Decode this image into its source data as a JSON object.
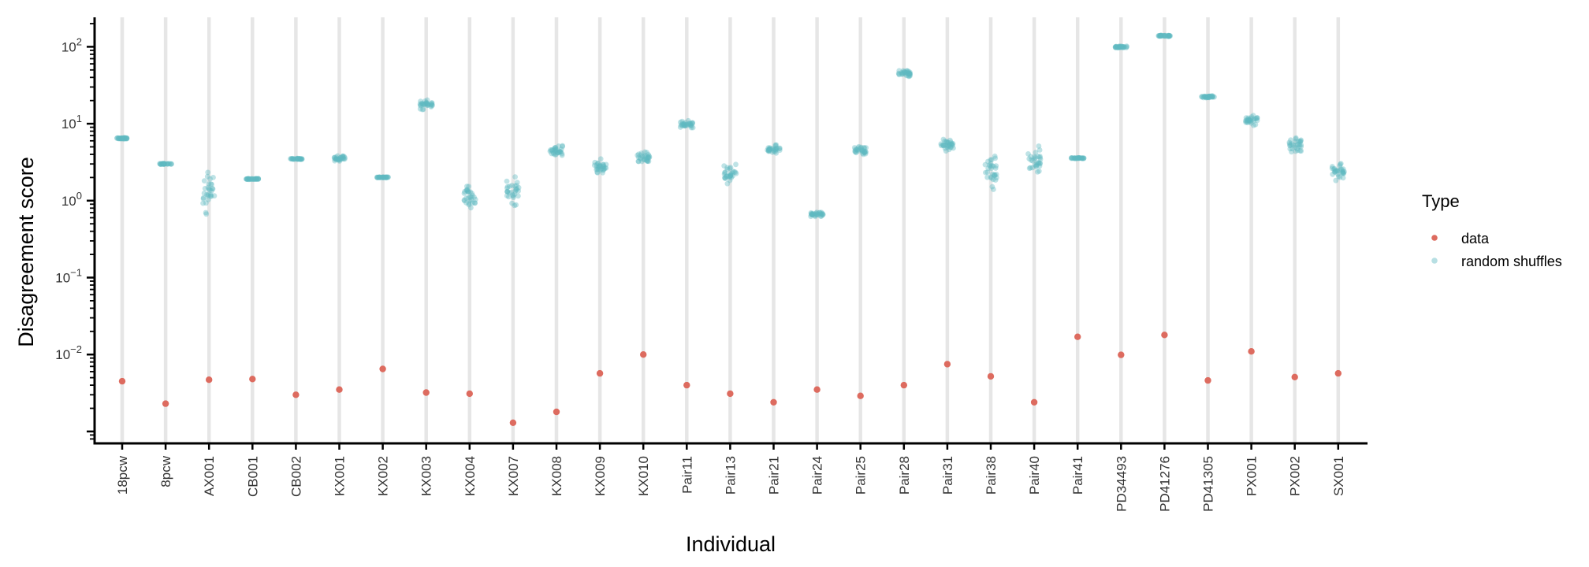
{
  "chart_data": {
    "type": "scatter",
    "title": "",
    "xlabel": "Individual",
    "ylabel": "Disagreement score",
    "yscale": "log10",
    "ylim": [
      0.00055,
      250
    ],
    "grid": "vertical-major",
    "legend": {
      "title": "Type",
      "position": "right",
      "entries": [
        {
          "name": "data",
          "color": "#dd6b5f"
        },
        {
          "name": "random shuffles",
          "color": "#5fb8c1"
        }
      ]
    },
    "y_ticks": [
      {
        "value": 0.01,
        "base": "10",
        "exp": "−2"
      },
      {
        "value": 0.1,
        "base": "10",
        "exp": "−1"
      },
      {
        "value": 1,
        "base": "10",
        "exp": "0"
      },
      {
        "value": 10,
        "base": "10",
        "exp": "1"
      },
      {
        "value": 100,
        "base": "10",
        "exp": "2"
      }
    ],
    "categories": [
      "18pcw",
      "8pcw",
      "AX001",
      "CB001",
      "CB002",
      "KX001",
      "KX002",
      "KX003",
      "KX004",
      "KX007",
      "KX008",
      "KX009",
      "KX010",
      "Pair11",
      "Pair13",
      "Pair21",
      "Pair24",
      "Pair25",
      "Pair28",
      "Pair31",
      "Pair38",
      "Pair40",
      "Pair41",
      "PD34493",
      "PD41276",
      "PD41305",
      "PX001",
      "PX002",
      "SX001"
    ],
    "series": [
      {
        "name": "data",
        "values": [
          0.0045,
          0.0023,
          0.0047,
          0.0048,
          0.003,
          0.0035,
          0.0065,
          0.0032,
          0.0031,
          0.0013,
          0.0018,
          0.0057,
          0.01,
          0.004,
          0.0031,
          0.0024,
          0.0035,
          0.0029,
          0.004,
          0.0075,
          0.0052,
          0.0024,
          0.017,
          0.0099,
          0.018,
          0.0046,
          0.011,
          0.0051,
          0.0057
        ]
      },
      {
        "name": "random shuffles",
        "ranges": [
          [
            6.3,
            6.6
          ],
          [
            2.95,
            3.05
          ],
          [
            0.55,
            2.6
          ],
          [
            1.88,
            1.95
          ],
          [
            3.4,
            3.55
          ],
          [
            3.2,
            4.0
          ],
          [
            1.98,
            2.05
          ],
          [
            15,
            21
          ],
          [
            0.78,
            1.6
          ],
          [
            0.85,
            2.2
          ],
          [
            3.6,
            5.4
          ],
          [
            2.0,
            3.5
          ],
          [
            3.1,
            4.3
          ],
          [
            8.8,
            11
          ],
          [
            1.55,
            3.1
          ],
          [
            3.9,
            5.5
          ],
          [
            0.62,
            0.72
          ],
          [
            3.9,
            5.2
          ],
          [
            40,
            52
          ],
          [
            4.3,
            6.4
          ],
          [
            1.35,
            4.2
          ],
          [
            2.0,
            5.4
          ],
          [
            3.5,
            3.65
          ],
          [
            95,
            104
          ],
          [
            136,
            142
          ],
          [
            21.5,
            23.5
          ],
          [
            9.5,
            13
          ],
          [
            4.0,
            6.8
          ],
          [
            1.8,
            3.2
          ]
        ]
      }
    ]
  }
}
